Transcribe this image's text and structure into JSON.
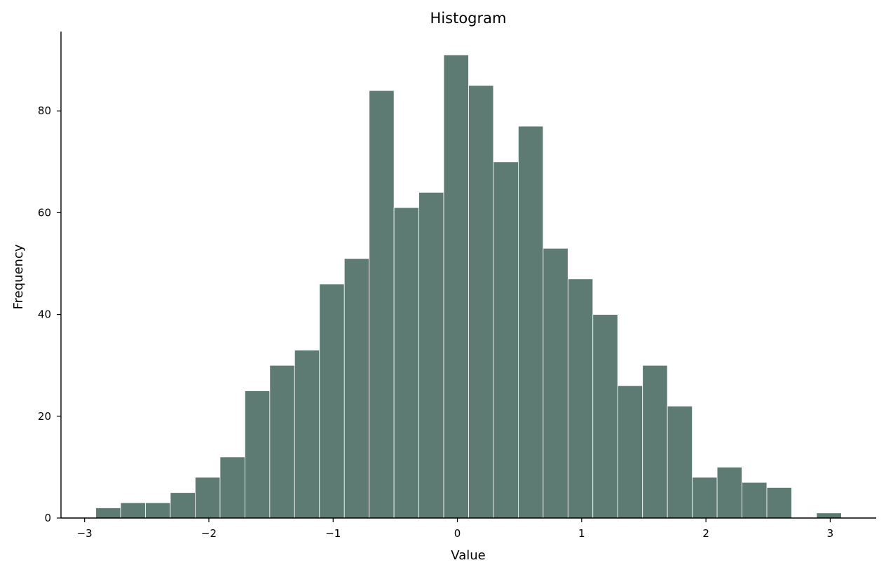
{
  "chart_data": {
    "type": "bar",
    "title": "Histogram",
    "xlabel": "Value",
    "ylabel": "Frequency",
    "bar_color": "#5e7b73",
    "bar_edge_color": "#ffffff",
    "xlim": [
      -3.19,
      3.37
    ],
    "ylim": [
      0,
      95.6
    ],
    "x_ticks": [
      -3,
      -2,
      -1,
      0,
      1,
      2,
      3
    ],
    "x_tick_labels": [
      "−3",
      "−2",
      "−1",
      "0",
      "1",
      "2",
      "3"
    ],
    "y_ticks": [
      0,
      20,
      40,
      60,
      80
    ],
    "y_tick_labels": [
      "0",
      "20",
      "40",
      "60",
      "80"
    ],
    "grid": false,
    "bin_edges": [
      -2.91,
      -2.71,
      -2.51,
      -2.31,
      -2.11,
      -1.91,
      -1.71,
      -1.51,
      -1.31,
      -1.11,
      -0.91,
      -0.71,
      -0.51,
      -0.31,
      -0.11,
      0.09,
      0.29,
      0.49,
      0.69,
      0.89,
      1.09,
      1.29,
      1.49,
      1.69,
      1.89,
      2.09,
      2.29,
      2.49,
      2.69,
      2.89,
      3.09
    ],
    "values": [
      2,
      3,
      3,
      5,
      8,
      12,
      25,
      30,
      33,
      46,
      51,
      84,
      61,
      64,
      91,
      85,
      70,
      77,
      53,
      47,
      40,
      26,
      30,
      22,
      8,
      10,
      7,
      6,
      0,
      1
    ]
  }
}
